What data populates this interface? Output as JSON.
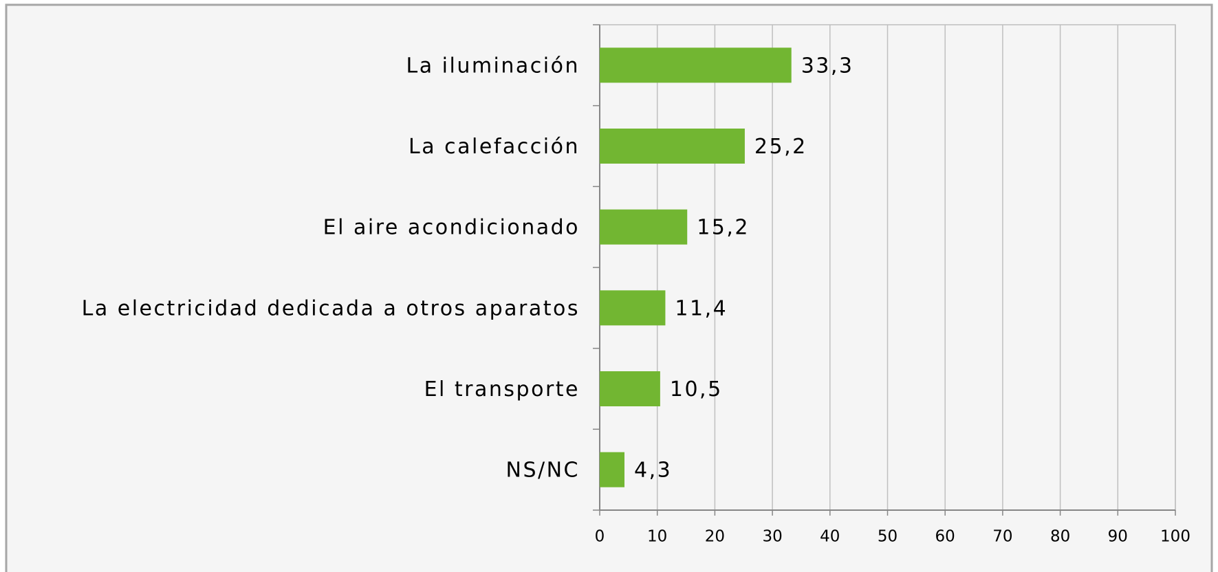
{
  "chart_data": {
    "type": "hbar",
    "categories": [
      "La iluminación",
      "La calefacción",
      "El aire acondicionado",
      "La electricidad dedicada a otros aparatos",
      "El transporte",
      "NS/NC"
    ],
    "values": [
      33.3,
      25.2,
      15.2,
      11.4,
      10.5,
      4.3
    ],
    "value_labels": [
      "33,3",
      "25,2",
      "15,2",
      "11,4",
      "10,5",
      "4,3"
    ],
    "color": "#72b632",
    "xlim": [
      0,
      100
    ],
    "xticks": [
      0,
      10,
      20,
      30,
      40,
      50,
      60,
      70,
      80,
      90,
      100
    ],
    "grid": true
  }
}
